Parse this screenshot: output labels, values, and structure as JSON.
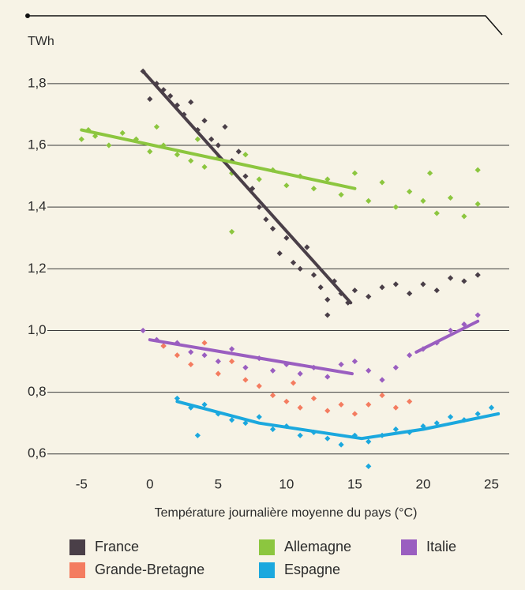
{
  "chart_data": {
    "type": "scatter",
    "y_label": "TWh",
    "x_label": "Température journalière moyenne du pays (°C)",
    "xlim": [
      -7.5,
      26.3
    ],
    "ylim": [
      0.52,
      1.92
    ],
    "xticks": [
      -5,
      0,
      5,
      10,
      15,
      20,
      25
    ],
    "yticks": [
      {
        "value": 0.6,
        "label": "0,6"
      },
      {
        "value": 0.8,
        "label": "0,8"
      },
      {
        "value": 1.0,
        "label": "1,0"
      },
      {
        "value": 1.2,
        "label": "1,2"
      },
      {
        "value": 1.4,
        "label": "1,4"
      },
      {
        "value": 1.6,
        "label": "1,6"
      },
      {
        "value": 1.8,
        "label": "1,8"
      }
    ],
    "grid": true,
    "series": [
      {
        "name": "France",
        "color": "#4a3f48",
        "x": [
          -0.5,
          0,
          0.5,
          1,
          1.5,
          2,
          2.5,
          3,
          3.5,
          4,
          4.5,
          5,
          5.5,
          6,
          6.5,
          7,
          7.5,
          8,
          8.5,
          9,
          9.5,
          10,
          10.5,
          11,
          11.5,
          12,
          12.5,
          13,
          13.5,
          14,
          14.5,
          15,
          16,
          17,
          18,
          19,
          20,
          21,
          22,
          23,
          24,
          13
        ],
        "y": [
          1.84,
          1.75,
          1.8,
          1.78,
          1.76,
          1.73,
          1.7,
          1.74,
          1.65,
          1.68,
          1.62,
          1.6,
          1.66,
          1.55,
          1.58,
          1.5,
          1.46,
          1.4,
          1.36,
          1.33,
          1.25,
          1.3,
          1.22,
          1.2,
          1.27,
          1.18,
          1.14,
          1.1,
          1.16,
          1.12,
          1.09,
          1.13,
          1.11,
          1.14,
          1.15,
          1.12,
          1.15,
          1.13,
          1.17,
          1.16,
          1.18,
          1.05
        ],
        "trend": {
          "x": [
            -0.5,
            14.7
          ],
          "y": [
            1.84,
            1.09
          ]
        }
      },
      {
        "name": "Allemagne",
        "color": "#8cc63f",
        "x": [
          -5,
          -4.5,
          -4,
          -3,
          -2,
          -1,
          0,
          0.5,
          1,
          2,
          3,
          3.5,
          4,
          5,
          6,
          6,
          7,
          8,
          9,
          10,
          11,
          12,
          13,
          14,
          15,
          16,
          17,
          18,
          19,
          20,
          20.5,
          21,
          22,
          23,
          24,
          24
        ],
        "y": [
          1.62,
          1.65,
          1.63,
          1.6,
          1.64,
          1.62,
          1.58,
          1.66,
          1.6,
          1.57,
          1.55,
          1.62,
          1.53,
          1.56,
          1.51,
          1.32,
          1.57,
          1.49,
          1.52,
          1.47,
          1.5,
          1.46,
          1.49,
          1.44,
          1.51,
          1.42,
          1.48,
          1.4,
          1.45,
          1.42,
          1.51,
          1.38,
          1.43,
          1.37,
          1.41,
          1.52
        ],
        "trend": {
          "x": [
            -5,
            15
          ],
          "y": [
            1.65,
            1.46
          ]
        }
      },
      {
        "name": "Italie",
        "color": "#9a5ec0",
        "x": [
          -0.5,
          0.5,
          1,
          2,
          3,
          4,
          5,
          6,
          7,
          8,
          9,
          10,
          11,
          12,
          13,
          14,
          15,
          16,
          17,
          18,
          19,
          20,
          21,
          22,
          23,
          24
        ],
        "y": [
          1.0,
          0.97,
          0.95,
          0.96,
          0.93,
          0.92,
          0.9,
          0.94,
          0.88,
          0.91,
          0.87,
          0.89,
          0.86,
          0.88,
          0.85,
          0.89,
          0.9,
          0.87,
          0.84,
          0.88,
          0.92,
          0.94,
          0.96,
          1.0,
          1.02,
          1.05
        ],
        "trend": {
          "x": [
            0,
            14.8,
            17,
            19.5,
            24
          ],
          "y": [
            0.97,
            0.86,
            null,
            0.93,
            1.03
          ]
        }
      },
      {
        "name": "Grande-Bretagne",
        "color": "#f47c60",
        "x": [
          1,
          2,
          3,
          4,
          5,
          6,
          7,
          8,
          9,
          10,
          10.5,
          11,
          12,
          13,
          14,
          15,
          16,
          17,
          18,
          19
        ],
        "y": [
          0.95,
          0.92,
          0.89,
          0.96,
          0.86,
          0.9,
          0.84,
          0.82,
          0.79,
          0.77,
          0.83,
          0.75,
          0.78,
          0.74,
          0.76,
          0.73,
          0.76,
          0.79,
          0.75,
          0.77
        ]
      },
      {
        "name": "Espagne",
        "color": "#1ba8de",
        "x": [
          2,
          3,
          3.5,
          4,
          5,
          6,
          7,
          8,
          9,
          10,
          11,
          12,
          13,
          14,
          15,
          16,
          16,
          17,
          18,
          19,
          20,
          21,
          22,
          23,
          24,
          25
        ],
        "y": [
          0.78,
          0.75,
          0.66,
          0.76,
          0.73,
          0.71,
          0.7,
          0.72,
          0.68,
          0.69,
          0.66,
          0.67,
          0.65,
          0.63,
          0.66,
          0.64,
          0.56,
          0.66,
          0.68,
          0.67,
          0.69,
          0.7,
          0.72,
          0.71,
          0.73,
          0.75
        ],
        "trend": {
          "x": [
            2,
            8,
            15.5,
            20,
            25.5
          ],
          "y": [
            0.77,
            0.7,
            0.65,
            0.68,
            0.73
          ]
        }
      }
    ]
  }
}
